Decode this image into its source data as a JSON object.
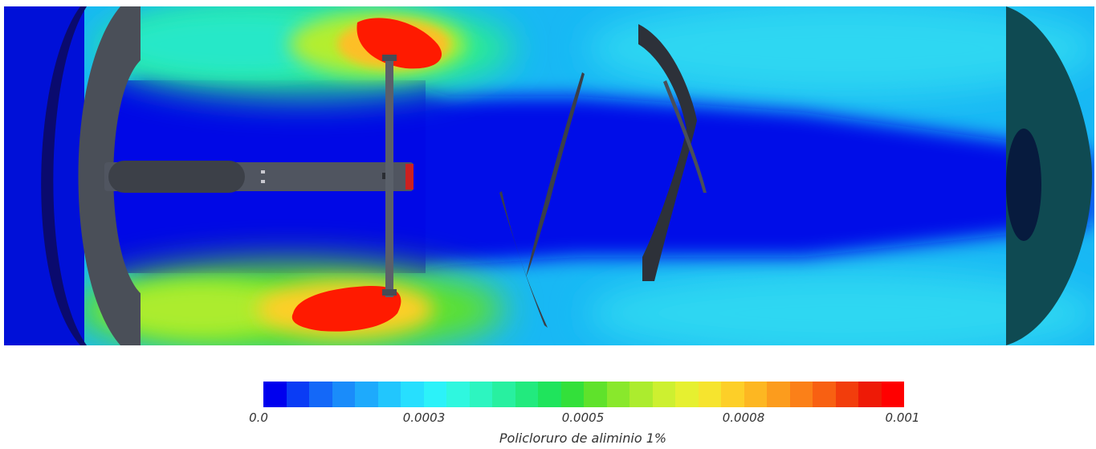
{
  "legend": {
    "title": "Policloruro de aliminio 1%",
    "ticks": [
      "0.0",
      "0.0003",
      "0.0005",
      "0.0008",
      "0.001"
    ],
    "colors": [
      "#0000ee",
      "#0a3cf5",
      "#1468f8",
      "#1a8cfa",
      "#1eaafc",
      "#22c6fd",
      "#27dffe",
      "#2cf2f9",
      "#2ff7df",
      "#2df5c0",
      "#28f0a0",
      "#22ea7e",
      "#1fe45c",
      "#33e03a",
      "#5fe22b",
      "#89e82c",
      "#acec2e",
      "#cdf030",
      "#e6f030",
      "#f6e42e",
      "#fdcf28",
      "#fdb722",
      "#fc9c1d",
      "#fb8018",
      "#f86012",
      "#f23d0c",
      "#ee1a06",
      "#ff0000"
    ]
  }
}
